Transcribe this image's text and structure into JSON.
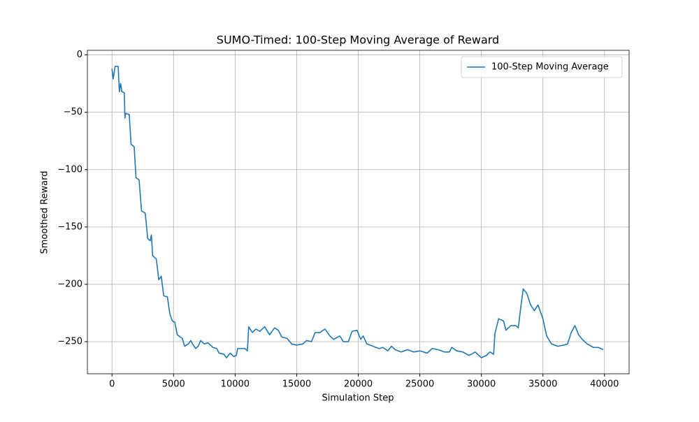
{
  "chart_data": {
    "type": "line",
    "title": "SUMO-Timed: 100-Step Moving Average of Reward",
    "x_label": "Simulation Step",
    "y_label": "Smoothed Reward",
    "x": [
      0,
      100,
      250,
      500,
      600,
      700,
      800,
      1000,
      1050,
      1100,
      1400,
      1550,
      1800,
      1950,
      2200,
      2400,
      2700,
      2900,
      3100,
      3200,
      3300,
      3600,
      3800,
      4000,
      4200,
      4500,
      4700,
      4900,
      5100,
      5300,
      5700,
      5900,
      6200,
      6400,
      6600,
      6800,
      7000,
      7200,
      7500,
      7800,
      8200,
      8500,
      8700,
      9100,
      9300,
      9600,
      9900,
      10100,
      10200,
      10800,
      11000,
      11100,
      11400,
      11700,
      12000,
      12400,
      12800,
      13200,
      13500,
      13800,
      14200,
      14600,
      15000,
      15500,
      15800,
      16200,
      16500,
      16900,
      17300,
      17700,
      18000,
      18500,
      18800,
      19200,
      19500,
      19900,
      20200,
      20400,
      20700,
      21200,
      21700,
      22000,
      22400,
      22700,
      23000,
      23500,
      24000,
      24500,
      25000,
      25600,
      26000,
      26500,
      27000,
      27400,
      27600,
      28000,
      28500,
      29000,
      29500,
      30000,
      30400,
      30700,
      31000,
      31100,
      31400,
      31800,
      32000,
      32400,
      32800,
      33000,
      33200,
      33400,
      33700,
      34000,
      34300,
      34600,
      35000,
      35300,
      35700,
      36200,
      36700,
      37000,
      37300,
      37600,
      37900,
      38200,
      38600,
      39100,
      39500,
      39900
    ],
    "series": [
      {
        "name": "100-Step Moving Average",
        "color": "#1f77b4",
        "values": [
          -12,
          -21,
          -10,
          -10,
          -32,
          -25,
          -32,
          -33,
          -55,
          -51,
          -52,
          -78,
          -80,
          -107,
          -109,
          -136,
          -138,
          -160,
          -162,
          -157,
          -175,
          -178,
          -196,
          -193,
          -210,
          -211,
          -226,
          -232,
          -233,
          -244,
          -247,
          -254,
          -252,
          -249,
          -253,
          -256,
          -254,
          -249,
          -252,
          -251,
          -255,
          -256,
          -260,
          -261,
          -264,
          -260,
          -263,
          -262,
          -256,
          -256,
          -258,
          -237,
          -242,
          -239,
          -241,
          -237,
          -244,
          -238,
          -240,
          -246,
          -247,
          -252,
          -253,
          -252,
          -249,
          -250,
          -242,
          -242,
          -239,
          -245,
          -248,
          -245,
          -250,
          -250,
          -241,
          -240,
          -248,
          -245,
          -252,
          -254,
          -256,
          -255,
          -258,
          -254,
          -257,
          -259,
          -257,
          -259,
          -258,
          -260,
          -256,
          -257,
          -259,
          -259,
          -255,
          -258,
          -259,
          -262,
          -259,
          -264,
          -262,
          -259,
          -261,
          -243,
          -230,
          -232,
          -240,
          -236,
          -236,
          -238,
          -220,
          -204,
          -208,
          -218,
          -223,
          -218,
          -230,
          -245,
          -252,
          -254,
          -253,
          -252,
          -242,
          -236,
          -244,
          -248,
          -252,
          -255,
          -255,
          -257
        ]
      }
    ],
    "xlim": [
      -2000,
      42000
    ],
    "ylim": [
      -278,
      4
    ],
    "xticks": [
      0,
      5000,
      10000,
      15000,
      20000,
      25000,
      30000,
      35000,
      40000
    ],
    "yticks": [
      {
        "value": -250,
        "label": "−250"
      },
      {
        "value": -200,
        "label": "−200"
      },
      {
        "value": -150,
        "label": "−150"
      },
      {
        "value": -100,
        "label": "−100"
      },
      {
        "value": -50,
        "label": "−50"
      },
      0
    ],
    "grid": true,
    "legend": "upper right"
  }
}
